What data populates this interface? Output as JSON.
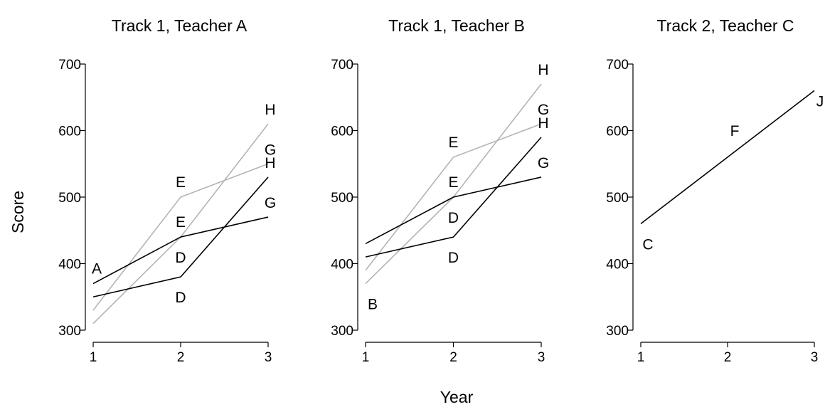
{
  "chart_data": {
    "type": "line",
    "xlabel": "Year",
    "ylabel": "Score",
    "xlim": [
      1,
      3
    ],
    "ylim": [
      300,
      700
    ],
    "x_ticks": [
      1,
      2,
      3
    ],
    "y_ticks": [
      300,
      400,
      500,
      600,
      700
    ],
    "colors": {
      "dark": "#000000",
      "light": "#b4b4b4"
    },
    "panels": [
      {
        "title": "Track 1, Teacher A",
        "series": [
          {
            "color": "light",
            "values": [
              330,
              500,
              550
            ],
            "labels": [
              "",
              "E",
              "G"
            ]
          },
          {
            "color": "light",
            "values": [
              310,
              440,
              610
            ],
            "labels": [
              "",
              "D",
              "H"
            ]
          },
          {
            "color": "dark",
            "values": [
              370,
              440,
              470
            ],
            "labels": [
              "A",
              "E",
              "G"
            ]
          },
          {
            "color": "dark",
            "values": [
              350,
              380,
              530
            ],
            "labels": [
              "",
              "D",
              "H"
            ]
          }
        ]
      },
      {
        "title": "Track 1, Teacher B",
        "series": [
          {
            "color": "light",
            "values": [
              390,
              560,
              610
            ],
            "labels": [
              "",
              "E",
              "G"
            ]
          },
          {
            "color": "light",
            "values": [
              370,
              500,
              670
            ],
            "labels": [
              "B",
              "D",
              "H"
            ]
          },
          {
            "color": "dark",
            "values": [
              430,
              500,
              530
            ],
            "labels": [
              "",
              "E",
              "G"
            ]
          },
          {
            "color": "dark",
            "values": [
              410,
              440,
              590
            ],
            "labels": [
              "",
              "D",
              "H"
            ]
          }
        ]
      },
      {
        "title": "Track 2, Teacher C",
        "series": [
          {
            "color": "dark",
            "values": [
              460,
              560,
              660
            ],
            "labels": [
              "C",
              "F",
              "J"
            ]
          }
        ]
      }
    ]
  }
}
